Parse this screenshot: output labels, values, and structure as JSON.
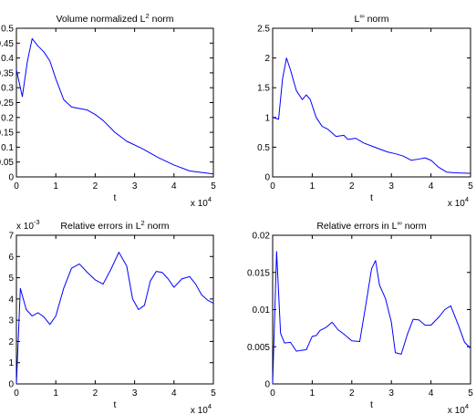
{
  "chart_data": [
    {
      "type": "line",
      "title": "Volume normalized L",
      "title_sup": "2",
      "title_tail": " norm",
      "xlabel": "t",
      "xlim": [
        0,
        5
      ],
      "ylim": [
        0,
        0.5
      ],
      "xticks": [
        "0",
        "1",
        "2",
        "3",
        "4",
        "5"
      ],
      "yticks": [
        "0",
        "0.05",
        "0.1",
        "0.15",
        "0.2",
        "0.25",
        "0.3",
        "0.35",
        "0.4",
        "0.45",
        "0.5"
      ],
      "x_multiplier": "x 10",
      "x_multiplier_exp": "4",
      "y_multiplier": "",
      "y_multiplier_exp": "",
      "series_color": "#0000ff",
      "x": [
        0,
        0.15,
        0.28,
        0.4,
        0.55,
        0.7,
        0.85,
        1.0,
        1.2,
        1.4,
        1.6,
        1.8,
        2.0,
        2.2,
        2.5,
        2.8,
        3.2,
        3.6,
        4.0,
        4.4,
        5.0
      ],
      "y": [
        0.36,
        0.27,
        0.39,
        0.465,
        0.44,
        0.42,
        0.39,
        0.33,
        0.26,
        0.235,
        0.23,
        0.225,
        0.21,
        0.19,
        0.15,
        0.12,
        0.095,
        0.065,
        0.04,
        0.02,
        0.01
      ]
    },
    {
      "type": "line",
      "title": "L",
      "title_sup": "∞",
      "title_tail": " norm",
      "xlabel": "t",
      "xlim": [
        0,
        5
      ],
      "ylim": [
        0,
        2.5
      ],
      "xticks": [
        "0",
        "1",
        "2",
        "3",
        "4",
        "5"
      ],
      "yticks": [
        "0",
        "0.5",
        "1",
        "1.5",
        "2",
        "2.5"
      ],
      "x_multiplier": "x 10",
      "x_multiplier_exp": "4",
      "y_multiplier": "",
      "y_multiplier_exp": "",
      "series_color": "#0000ff",
      "x": [
        0,
        0.15,
        0.25,
        0.35,
        0.45,
        0.6,
        0.75,
        0.85,
        0.95,
        1.1,
        1.25,
        1.4,
        1.6,
        1.8,
        1.9,
        2.1,
        2.3,
        2.5,
        2.7,
        2.9,
        3.1,
        3.3,
        3.5,
        3.7,
        3.85,
        4.0,
        4.2,
        4.4,
        4.6,
        5.0
      ],
      "y": [
        1.0,
        0.97,
        1.65,
        2.0,
        1.8,
        1.45,
        1.3,
        1.38,
        1.3,
        1.0,
        0.85,
        0.8,
        0.68,
        0.7,
        0.63,
        0.65,
        0.57,
        0.52,
        0.47,
        0.42,
        0.39,
        0.35,
        0.28,
        0.3,
        0.32,
        0.28,
        0.16,
        0.08,
        0.07,
        0.06
      ]
    },
    {
      "type": "line",
      "title": "Relative errors in L",
      "title_sup": "2",
      "title_tail": " norm",
      "xlabel": "t",
      "xlim": [
        0,
        5
      ],
      "ylim": [
        0,
        7
      ],
      "xticks": [
        "0",
        "1",
        "2",
        "3",
        "4",
        "5"
      ],
      "yticks": [
        "0",
        "1",
        "2",
        "3",
        "4",
        "5",
        "6",
        "7"
      ],
      "x_multiplier": "x 10",
      "x_multiplier_exp": "4",
      "y_multiplier": "x 10",
      "y_multiplier_exp": "-3",
      "series_color": "#0000ff",
      "x": [
        0,
        0.1,
        0.25,
        0.4,
        0.55,
        0.7,
        0.85,
        1.0,
        1.2,
        1.4,
        1.6,
        1.8,
        2.0,
        2.2,
        2.4,
        2.6,
        2.8,
        2.95,
        3.1,
        3.25,
        3.4,
        3.55,
        3.7,
        3.85,
        4.0,
        4.2,
        4.4,
        4.55,
        4.7,
        4.85,
        5.0
      ],
      "y": [
        0,
        4.5,
        3.5,
        3.2,
        3.35,
        3.15,
        2.8,
        3.2,
        4.5,
        5.45,
        5.65,
        5.25,
        4.9,
        4.7,
        5.4,
        6.2,
        5.55,
        4.0,
        3.5,
        3.7,
        4.85,
        5.3,
        5.25,
        4.95,
        4.55,
        4.95,
        5.05,
        4.7,
        4.2,
        3.95,
        3.8
      ]
    },
    {
      "type": "line",
      "title": "Relative errors in L",
      "title_sup": "∞",
      "title_tail": " norm",
      "xlabel": "t",
      "xlim": [
        0,
        5
      ],
      "ylim": [
        0,
        0.02
      ],
      "xticks": [
        "0",
        "1",
        "2",
        "3",
        "4",
        "5"
      ],
      "yticks": [
        "0",
        "0.005",
        "0.01",
        "0.015",
        "0.02"
      ],
      "x_multiplier": "x 10",
      "x_multiplier_exp": "4",
      "y_multiplier": "",
      "y_multiplier_exp": "",
      "series_color": "#0000ff",
      "x": [
        0,
        0.1,
        0.2,
        0.3,
        0.45,
        0.6,
        0.7,
        0.85,
        1.0,
        1.1,
        1.2,
        1.35,
        1.5,
        1.65,
        1.8,
        2.0,
        2.2,
        2.35,
        2.5,
        2.6,
        2.7,
        2.85,
        3.0,
        3.1,
        3.25,
        3.4,
        3.55,
        3.7,
        3.85,
        4.0,
        4.2,
        4.35,
        4.5,
        4.7,
        4.85,
        5.0
      ],
      "y": [
        0,
        0.0178,
        0.0068,
        0.0055,
        0.0056,
        0.0044,
        0.0045,
        0.0046,
        0.0064,
        0.0065,
        0.0072,
        0.0076,
        0.0083,
        0.0073,
        0.0067,
        0.0058,
        0.0057,
        0.0105,
        0.0155,
        0.0166,
        0.0133,
        0.0115,
        0.0083,
        0.0042,
        0.004,
        0.0066,
        0.0087,
        0.0086,
        0.0079,
        0.0079,
        0.009,
        0.01,
        0.0105,
        0.0078,
        0.0056,
        0.0048
      ]
    }
  ]
}
